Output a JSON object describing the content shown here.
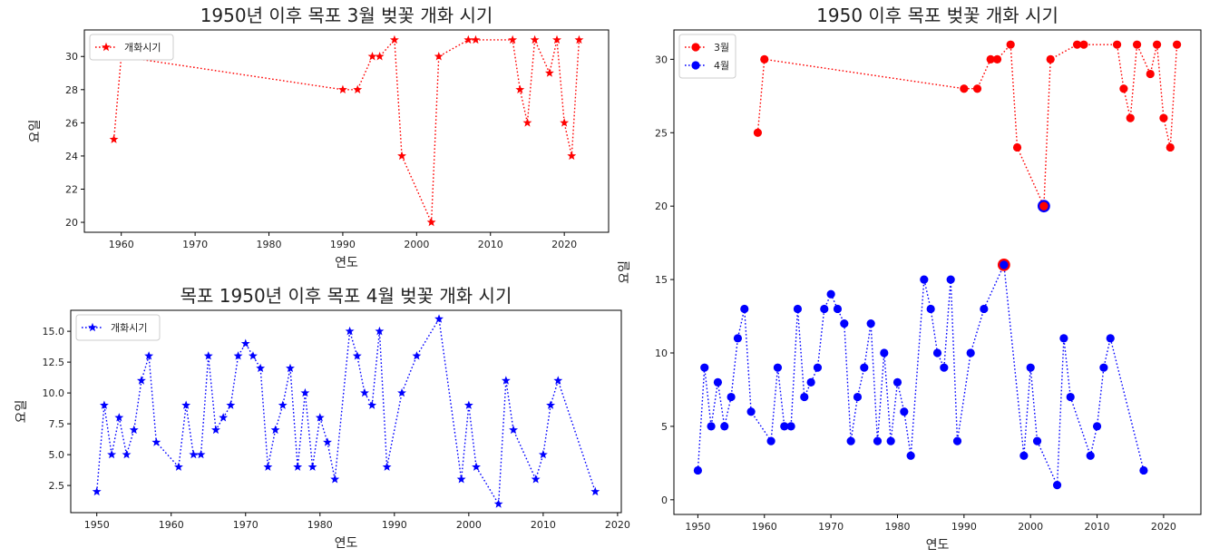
{
  "chart_data": [
    {
      "id": "march",
      "type": "line",
      "title": "1950년 이후 목포 3월 벚꽃 개화 시기",
      "xlabel": "연도",
      "ylabel": "요일",
      "xlim": [
        1955,
        2026
      ],
      "ylim": [
        19.4,
        31.6
      ],
      "xticks": [
        1960,
        1970,
        1980,
        1990,
        2000,
        2010,
        2020
      ],
      "yticks": [
        20,
        22,
        24,
        26,
        28,
        30
      ],
      "legend_loc": "upper-left",
      "grid": false,
      "series": [
        {
          "name": "개화시기",
          "color": "#ff0000",
          "marker": "star",
          "line": "dotted",
          "x": [
            1959,
            1960,
            1990,
            1992,
            1994,
            1995,
            1997,
            1998,
            2002,
            2003,
            2007,
            2008,
            2013,
            2014,
            2015,
            2016,
            2018,
            2019,
            2020,
            2021,
            2022
          ],
          "y": [
            25,
            30,
            28,
            28,
            30,
            30,
            31,
            24,
            20,
            30,
            31,
            31,
            31,
            28,
            26,
            31,
            29,
            31,
            26,
            24,
            31
          ]
        }
      ]
    },
    {
      "id": "april",
      "type": "line",
      "title": "목포 1950년 이후 목포 4월 벚꽃 개화 시기",
      "xlabel": "연도",
      "ylabel": "요일",
      "xlim": [
        1946.5,
        2020.5
      ],
      "ylim": [
        0.3,
        16.7
      ],
      "xticks": [
        1950,
        1960,
        1970,
        1980,
        1990,
        2000,
        2010,
        2020
      ],
      "yticks": [
        2.5,
        5.0,
        7.5,
        10.0,
        12.5,
        15.0
      ],
      "ytick_labels": [
        "2.5",
        "5.0",
        "7.5",
        "10.0",
        "12.5",
        "15.0"
      ],
      "legend_loc": "upper-left",
      "grid": false,
      "series": [
        {
          "name": "개화시기",
          "color": "#0000ff",
          "marker": "star",
          "line": "dotted",
          "x": [
            1950,
            1951,
            1952,
            1953,
            1954,
            1955,
            1956,
            1957,
            1958,
            1961,
            1962,
            1963,
            1964,
            1965,
            1966,
            1967,
            1968,
            1969,
            1970,
            1971,
            1972,
            1973,
            1974,
            1975,
            1976,
            1977,
            1978,
            1979,
            1980,
            1981,
            1982,
            1984,
            1985,
            1986,
            1987,
            1988,
            1989,
            1991,
            1993,
            1996,
            1999,
            2000,
            2001,
            2004,
            2005,
            2006,
            2009,
            2010,
            2011,
            2012,
            2017
          ],
          "y": [
            2,
            9,
            5,
            8,
            5,
            7,
            11,
            13,
            6,
            4,
            9,
            5,
            5,
            13,
            7,
            8,
            9,
            13,
            14,
            13,
            12,
            4,
            7,
            9,
            12,
            4,
            10,
            4,
            8,
            6,
            3,
            15,
            13,
            10,
            9,
            15,
            4,
            10,
            13,
            16,
            3,
            9,
            4,
            1,
            11,
            7,
            3,
            5,
            9,
            11,
            2
          ]
        }
      ]
    },
    {
      "id": "combined",
      "type": "line",
      "title": "1950 이후 목포 벚꽃 개화 시기",
      "xlabel": "연도",
      "ylabel": "요일",
      "xlim": [
        1946.4,
        2025.6
      ],
      "ylim": [
        -1.0,
        32.0
      ],
      "xticks": [
        1950,
        1960,
        1970,
        1980,
        1990,
        2000,
        2010,
        2020
      ],
      "yticks": [
        0,
        5,
        10,
        15,
        20,
        25,
        30
      ],
      "legend_loc": "upper-left",
      "grid": false,
      "series": [
        {
          "name": "3월",
          "color": "#ff0000",
          "marker": "circle",
          "line": "dotted",
          "x": [
            1959,
            1960,
            1990,
            1992,
            1994,
            1995,
            1997,
            1998,
            2002,
            2003,
            2007,
            2008,
            2013,
            2014,
            2015,
            2016,
            2018,
            2019,
            2020,
            2021,
            2022
          ],
          "y": [
            25,
            30,
            28,
            28,
            30,
            30,
            31,
            24,
            20,
            30,
            31,
            31,
            31,
            28,
            26,
            31,
            29,
            31,
            26,
            24,
            31
          ]
        },
        {
          "name": "4월",
          "color": "#0000ff",
          "marker": "circle",
          "line": "dotted",
          "x": [
            1950,
            1951,
            1952,
            1953,
            1954,
            1955,
            1956,
            1957,
            1958,
            1961,
            1962,
            1963,
            1964,
            1965,
            1966,
            1967,
            1968,
            1969,
            1970,
            1971,
            1972,
            1973,
            1974,
            1975,
            1976,
            1977,
            1978,
            1979,
            1980,
            1981,
            1982,
            1984,
            1985,
            1986,
            1987,
            1988,
            1989,
            1991,
            1993,
            1996,
            1999,
            2000,
            2001,
            2004,
            2005,
            2006,
            2009,
            2010,
            2011,
            2012,
            2017
          ],
          "y": [
            2,
            9,
            5,
            8,
            5,
            7,
            11,
            13,
            6,
            4,
            9,
            5,
            5,
            13,
            7,
            8,
            9,
            13,
            14,
            13,
            12,
            4,
            7,
            9,
            12,
            4,
            10,
            4,
            8,
            6,
            3,
            15,
            13,
            10,
            9,
            15,
            4,
            10,
            13,
            16,
            3,
            9,
            4,
            1,
            11,
            7,
            3,
            5,
            9,
            11,
            2
          ]
        }
      ],
      "highlights": [
        {
          "x": 2002,
          "y": 20,
          "fill": "#ff0000",
          "edge": "#0000ff"
        },
        {
          "x": 1996,
          "y": 16,
          "fill": "#0000ff",
          "edge": "#ff0000"
        }
      ]
    }
  ]
}
